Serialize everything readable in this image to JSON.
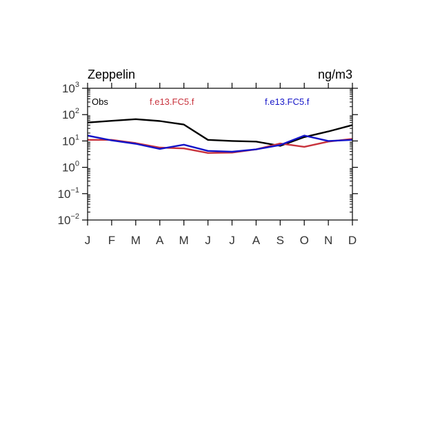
{
  "chart_data": {
    "type": "line",
    "title_left": "Zeppelin",
    "title_right": "ng/m3",
    "xscale": "categorical",
    "yscale": "log",
    "ylim": [
      0.01,
      1000
    ],
    "categories": [
      "J",
      "F",
      "M",
      "A",
      "M",
      "J",
      "J",
      "A",
      "S",
      "O",
      "N",
      "D"
    ],
    "ytick_labels": [
      {
        "base": "10",
        "exp": "3"
      },
      {
        "base": "10",
        "exp": "2"
      },
      {
        "base": "10",
        "exp": "1"
      },
      {
        "base": "10",
        "exp": "0"
      },
      {
        "base": "10",
        "exp": "−1"
      },
      {
        "base": "10",
        "exp": "−2"
      }
    ],
    "ytick_values": [
      1000,
      100,
      10,
      1,
      0.1,
      0.01
    ],
    "legend_placement": "top, inside plot",
    "series": [
      {
        "name": "Obs",
        "color": "#000000",
        "values": [
          50,
          58,
          67,
          57,
          42,
          11,
          10,
          9.5,
          6.5,
          14,
          23,
          40
        ]
      },
      {
        "name": "f.e13.FC5.f",
        "color": "#c8323c",
        "values": [
          11,
          11,
          8.3,
          5.6,
          5.2,
          3.5,
          3.6,
          4.8,
          8,
          6,
          9.5,
          12
        ]
      },
      {
        "name": "f.e13.FC5.f",
        "color": "#1414c8",
        "values": [
          16,
          10.5,
          7.8,
          5,
          7.2,
          4.2,
          3.9,
          4.8,
          7,
          16,
          10,
          11
        ]
      }
    ]
  }
}
